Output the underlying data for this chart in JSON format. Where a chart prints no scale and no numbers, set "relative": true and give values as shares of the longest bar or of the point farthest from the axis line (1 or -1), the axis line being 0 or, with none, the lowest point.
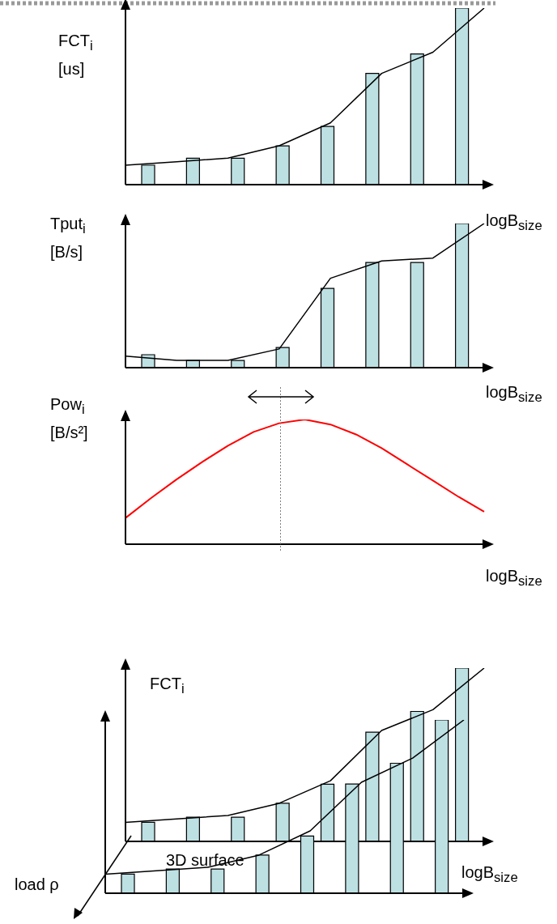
{
  "chart_data": [
    {
      "type": "bar",
      "relative": true,
      "ylabel": "FCT$_{i}$ [us]",
      "xlabel": "logB$_{size}$",
      "categories": [
        null,
        null,
        null,
        null,
        null,
        null,
        null,
        null
      ],
      "color": "#bde0e3",
      "values": [
        0.11,
        0.15,
        0.15,
        0.22,
        0.33,
        0.63,
        0.74,
        1
      ]
    },
    {
      "type": "line",
      "relative": true,
      "categories": [
        null,
        null,
        null,
        null,
        null,
        null,
        null,
        null
      ],
      "color": "#000000",
      "values": [
        0.11,
        0.13,
        0.15,
        0.22,
        0.35,
        0.63,
        0.75,
        1
      ]
    },
    {
      "type": "bar",
      "relative": true,
      "ylabel": "Tput$_{i}$ [B/s]",
      "xlabel": "logB$_{size}$",
      "categories": [
        null,
        null,
        null,
        null,
        null,
        null,
        null,
        null
      ],
      "color": "#bde0e3",
      "values": [
        0.09,
        0.05,
        0.05,
        0.14,
        0.55,
        0.73,
        0.73,
        1
      ]
    },
    {
      "type": "line",
      "relative": true,
      "categories": [
        null,
        null,
        null,
        null,
        null,
        null,
        null,
        null
      ],
      "color": "#000000",
      "values": [
        0.08,
        0.05,
        0.05,
        0.13,
        0.62,
        0.74,
        0.76,
        1
      ]
    },
    {
      "type": "line",
      "relative": true,
      "ylabel": "Pow$_{i}$ [B/s²]",
      "xlabel": "logB$_{size}$",
      "categories": [
        null,
        null,
        null,
        null,
        null,
        null,
        null,
        null,
        null,
        null,
        null,
        null,
        null,
        null,
        null
      ],
      "color": "#ff0000",
      "values": [
        0.21,
        0.37,
        0.52,
        0.66,
        0.79,
        0.9,
        0.97,
        1,
        0.96,
        0.88,
        0.77,
        0.64,
        0.51,
        0.38,
        0.26
      ]
    },
    {
      "type": "bar",
      "relative": true,
      "ylabel": "FCT$_{i}$",
      "xlabel": "logB$_{size}$",
      "categories": [
        null,
        null,
        null,
        null,
        null,
        null,
        null,
        null
      ],
      "color": "#bde0e3",
      "values": [
        0.11,
        0.14,
        0.14,
        0.22,
        0.33,
        0.63,
        0.75,
        1
      ],
      "annotations": [
        "3D surface",
        "load ρ"
      ]
    },
    {
      "type": "line",
      "relative": true,
      "categories": [
        null,
        null,
        null,
        null,
        null,
        null,
        null,
        null
      ],
      "color": "#000000",
      "values": [
        0.11,
        0.13,
        0.15,
        0.22,
        0.35,
        0.64,
        0.76,
        1
      ]
    },
    {
      "type": "bar",
      "relative": true,
      "categories": [
        null,
        null,
        null,
        null,
        null,
        null,
        null,
        null
      ],
      "color": "#bde0e3",
      "values": [
        0.11,
        0.14,
        0.14,
        0.22,
        0.33,
        0.63,
        0.75,
        1
      ]
    },
    {
      "type": "line",
      "relative": true,
      "categories": [
        null,
        null,
        null,
        null,
        null,
        null,
        null,
        null
      ],
      "color": "#000000",
      "values": [
        0.11,
        0.13,
        0.15,
        0.22,
        0.36,
        0.64,
        0.78,
        1
      ]
    }
  ]
}
